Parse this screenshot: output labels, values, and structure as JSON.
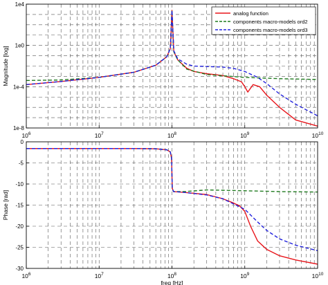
{
  "chart_data": [
    {
      "type": "line",
      "xscale": "log",
      "yscale": "log",
      "xlim": [
        1000000,
        10000000000
      ],
      "ylim": [
        1e-08,
        10000
      ],
      "grid": true,
      "grid_style": "dashed",
      "xlabel": "",
      "ylabel": "Magnitude [log]",
      "x_tick_labels": [
        {
          "base": "10",
          "exp": "6"
        },
        {
          "base": "10",
          "exp": "7"
        },
        {
          "base": "10",
          "exp": "8"
        },
        {
          "base": "10",
          "exp": "9"
        },
        {
          "base": "10",
          "exp": "10"
        }
      ],
      "y_tick_labels": [
        "1e-8",
        "1e-4",
        "1e0",
        "1e4"
      ],
      "legend": {
        "position": "top-right",
        "entries": [
          "analog function",
          "components macro-models ord2",
          "components macro-models ord3"
        ]
      },
      "series": [
        {
          "name": "analog function",
          "color": "#e8141a",
          "style": "solid",
          "x": [
            1000000,
            3000000,
            10000000,
            30000000,
            60000000,
            85000000,
            95000000,
            100000000,
            106000000,
            120000000,
            160000000,
            200000000,
            300000000,
            500000000,
            700000000,
            900000000,
            1000000000,
            1100000000,
            1300000000,
            1600000000,
            2000000000,
            3000000000,
            5000000000,
            10000000000
          ],
          "y": [
            0.00016,
            0.00032,
            0.0008,
            0.0025,
            0.012,
            0.08,
            0.5,
            2500,
            0.25,
            0.04,
            0.006,
            0.003,
            0.0018,
            0.0012,
            0.0006,
            0.0003,
            0.0001,
            3e-05,
            0.00016,
            0.0001,
            1.5e-05,
            1e-06,
            6e-08,
            1.5e-08
          ]
        },
        {
          "name": "components macro-models ord2",
          "color": "#1f7a1f",
          "style": "dashed",
          "x": [
            1000000,
            3000000,
            10000000,
            30000000,
            60000000,
            85000000,
            95000000,
            100000000,
            106000000,
            120000000,
            160000000,
            300000000,
            1000000000,
            3000000000,
            10000000000
          ],
          "y": [
            0.0004,
            0.00045,
            0.0008,
            0.0025,
            0.012,
            0.08,
            0.5,
            2500,
            0.25,
            0.04,
            0.005,
            0.0015,
            0.0008,
            0.0006,
            0.0005
          ]
        },
        {
          "name": "components macro-models ord3",
          "color": "#2222dd",
          "style": "dashed",
          "x": [
            1000000,
            3000000,
            10000000,
            30000000,
            60000000,
            85000000,
            95000000,
            100000000,
            106000000,
            120000000,
            160000000,
            200000000,
            300000000,
            500000000,
            700000000,
            1000000000,
            1500000000,
            2000000000,
            3000000000,
            5000000000,
            10000000000
          ],
          "y": [
            0.00016,
            0.00032,
            0.0008,
            0.0025,
            0.012,
            0.08,
            0.5,
            2500,
            0.3,
            0.05,
            0.015,
            0.01,
            0.009,
            0.008,
            0.006,
            0.003,
            0.0008,
            0.0002,
            2e-05,
            2e-06,
            1.5e-07
          ]
        }
      ]
    },
    {
      "type": "line",
      "xscale": "log",
      "xlim": [
        1000000,
        10000000000
      ],
      "ylim": [
        -30,
        0
      ],
      "grid": true,
      "grid_style": "dashed",
      "xlabel": "freq [Hz]",
      "ylabel": "Phase [rad]",
      "x_tick_labels": [
        {
          "base": "10",
          "exp": "6"
        },
        {
          "base": "10",
          "exp": "7"
        },
        {
          "base": "10",
          "exp": "8"
        },
        {
          "base": "10",
          "exp": "9"
        },
        {
          "base": "10",
          "exp": "10"
        }
      ],
      "y_ticks": [
        0,
        -5,
        -10,
        -15,
        -20,
        -25,
        -30
      ],
      "y_tick_labels": [
        "0",
        "-5",
        "-10",
        "-15",
        "-20",
        "-25",
        "-30"
      ],
      "series": [
        {
          "name": "analog function",
          "color": "#e8141a",
          "style": "solid",
          "x": [
            1000000,
            3000000,
            10000000,
            30000000,
            60000000,
            85000000,
            95000000,
            99000000,
            100000000,
            101000000,
            105000000,
            150000000,
            300000000,
            500000000,
            700000000,
            850000000,
            1000000000,
            1200000000,
            1500000000,
            2000000000,
            3000000000,
            5000000000,
            10000000000
          ],
          "y": [
            -1.6,
            -1.6,
            -1.6,
            -1.6,
            -1.65,
            -1.9,
            -2.4,
            -4,
            -8,
            -11,
            -11.8,
            -12,
            -12.5,
            -13.5,
            -14.5,
            -15.2,
            -16.5,
            -20,
            -23.5,
            -25.5,
            -27,
            -28,
            -29
          ]
        },
        {
          "name": "components macro-models ord2",
          "color": "#1f7a1f",
          "style": "dashed",
          "x": [
            1000000,
            3000000,
            10000000,
            30000000,
            60000000,
            85000000,
            95000000,
            99000000,
            100000000,
            101000000,
            105000000,
            150000000,
            300000000,
            1000000000,
            3000000000,
            10000000000
          ],
          "y": [
            -1.6,
            -1.6,
            -1.6,
            -1.6,
            -1.65,
            -1.9,
            -2.4,
            -4,
            -8,
            -11,
            -11.8,
            -11.8,
            -11.4,
            -11.6,
            -11.8,
            -11.9
          ]
        },
        {
          "name": "components macro-models ord3",
          "color": "#2222dd",
          "style": "dashed",
          "x": [
            1000000,
            3000000,
            10000000,
            30000000,
            60000000,
            85000000,
            95000000,
            99000000,
            100000000,
            101000000,
            105000000,
            150000000,
            300000000,
            500000000,
            1000000000,
            1500000000,
            2000000000,
            3000000000,
            5000000000,
            10000000000
          ],
          "y": [
            -1.6,
            -1.6,
            -1.6,
            -1.6,
            -1.65,
            -1.9,
            -2.4,
            -4,
            -8,
            -11,
            -11.8,
            -12,
            -12.6,
            -13.5,
            -16,
            -19,
            -21,
            -23,
            -24.5,
            -25.8
          ]
        }
      ]
    }
  ]
}
